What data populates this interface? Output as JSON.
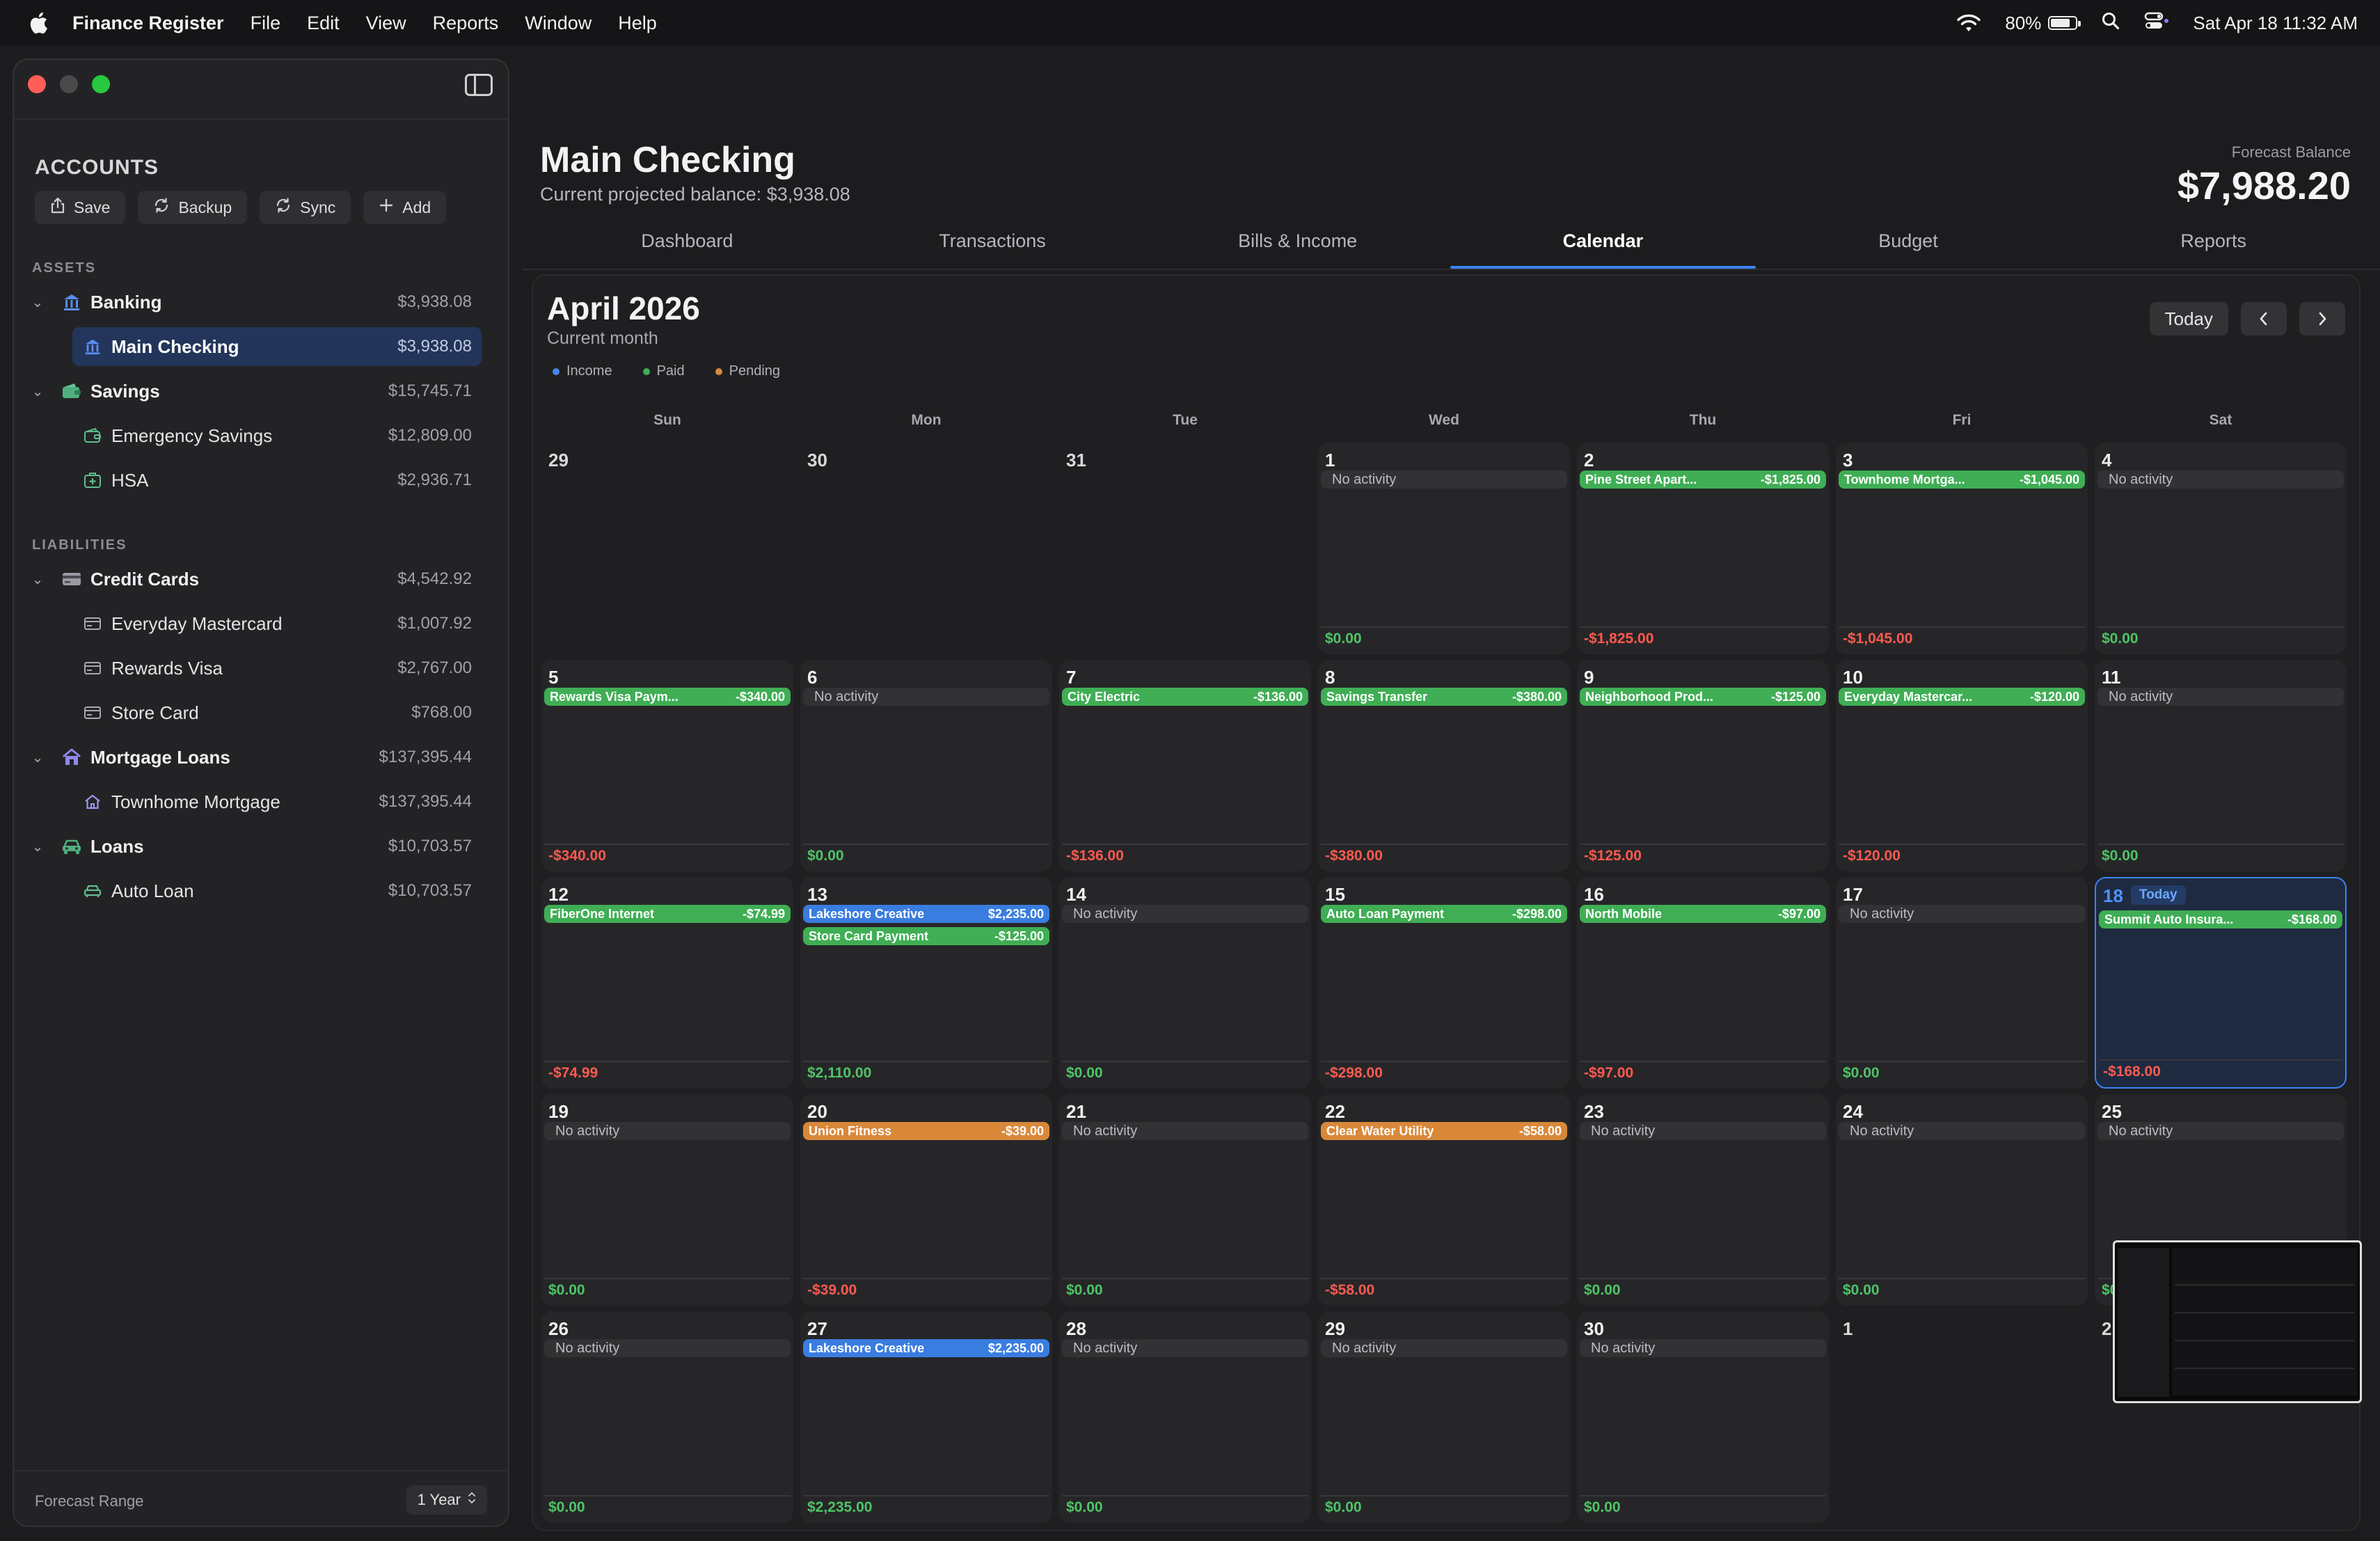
{
  "menubar": {
    "app_name": "Finance Register",
    "menus": [
      "File",
      "Edit",
      "View",
      "Reports",
      "Window",
      "Help"
    ],
    "battery": "80%",
    "battery_level": 0.8,
    "datetime": "Sat Apr 18  11:32 AM"
  },
  "sidebar": {
    "title": "ACCOUNTS",
    "toolbar": [
      {
        "label": "Save",
        "icon": "share-icon"
      },
      {
        "label": "Backup",
        "icon": "backup-icon"
      },
      {
        "label": "Sync",
        "icon": "sync-icon"
      },
      {
        "label": "Add",
        "icon": "plus-icon"
      }
    ],
    "assets_label": "ASSETS",
    "liabilities_label": "LIABILITIES",
    "groups": [
      {
        "name": "Banking",
        "amount": "$3,938.08",
        "icon": "bank-icon",
        "children": [
          {
            "name": "Main Checking",
            "amount": "$3,938.08",
            "icon": "bank-icon",
            "selected": true
          }
        ]
      },
      {
        "name": "Savings",
        "amount": "$15,745.71",
        "icon": "wallet-icon",
        "children": [
          {
            "name": "Emergency Savings",
            "amount": "$12,809.00",
            "icon": "wallet-icon"
          },
          {
            "name": "HSA",
            "amount": "$2,936.71",
            "icon": "medical-icon"
          }
        ]
      },
      {
        "name": "Credit Cards",
        "amount": "$4,542.92",
        "icon": "card-icon",
        "children": [
          {
            "name": "Everyday Mastercard",
            "amount": "$1,007.92",
            "icon": "card-icon"
          },
          {
            "name": "Rewards Visa",
            "amount": "$2,767.00",
            "icon": "card-icon"
          },
          {
            "name": "Store Card",
            "amount": "$768.00",
            "icon": "card-icon"
          }
        ]
      },
      {
        "name": "Mortgage Loans",
        "amount": "$137,395.44",
        "icon": "house-icon",
        "children": [
          {
            "name": "Townhome Mortgage",
            "amount": "$137,395.44",
            "icon": "house-icon"
          }
        ]
      },
      {
        "name": "Loans",
        "amount": "$10,703.57",
        "icon": "car-icon",
        "children": [
          {
            "name": "Auto Loan",
            "amount": "$10,703.57",
            "icon": "car-icon"
          }
        ]
      }
    ],
    "forecast_range_label": "Forecast Range",
    "forecast_range_value": "1 Year"
  },
  "header": {
    "title": "Main Checking",
    "subtitle": "Current projected balance: $3,938.08",
    "forecast_label": "Forecast Balance",
    "forecast_value": "$7,988.20"
  },
  "tabs": [
    {
      "label": "Dashboard",
      "active": false
    },
    {
      "label": "Transactions",
      "active": false
    },
    {
      "label": "Bills & Income",
      "active": false
    },
    {
      "label": "Calendar",
      "active": true
    },
    {
      "label": "Budget",
      "active": false
    },
    {
      "label": "Reports",
      "active": false
    }
  ],
  "calendar": {
    "title": "April 2026",
    "subtitle": "Current month",
    "legend": [
      {
        "label": "Income",
        "color": "#4a86e8"
      },
      {
        "label": "Paid",
        "color": "#3fae54"
      },
      {
        "label": "Pending",
        "color": "#d9883a"
      }
    ],
    "today_label": "Today",
    "today_badge": "Today",
    "weekdays": [
      "Sun",
      "Mon",
      "Tue",
      "Wed",
      "Thu",
      "Fri",
      "Sat"
    ],
    "no_activity": "No activity",
    "weeks": [
      [
        {
          "day": "29",
          "out": true
        },
        {
          "day": "30",
          "out": true
        },
        {
          "day": "31",
          "out": true
        },
        {
          "day": "1",
          "events": [],
          "total": "$0.00"
        },
        {
          "day": "2",
          "events": [
            {
              "name": "Pine Street Apart...",
              "amount": "-$1,825.00",
              "type": "paid"
            }
          ],
          "total": "-$1,825.00"
        },
        {
          "day": "3",
          "events": [
            {
              "name": "Townhome Mortga...",
              "amount": "-$1,045.00",
              "type": "paid"
            }
          ],
          "total": "-$1,045.00"
        },
        {
          "day": "4",
          "events": [],
          "total": "$0.00"
        }
      ],
      [
        {
          "day": "5",
          "events": [
            {
              "name": "Rewards Visa Paym...",
              "amount": "-$340.00",
              "type": "paid"
            }
          ],
          "total": "-$340.00"
        },
        {
          "day": "6",
          "events": [],
          "total": "$0.00"
        },
        {
          "day": "7",
          "events": [
            {
              "name": "City Electric",
              "amount": "-$136.00",
              "type": "paid"
            }
          ],
          "total": "-$136.00"
        },
        {
          "day": "8",
          "events": [
            {
              "name": "Savings Transfer",
              "amount": "-$380.00",
              "type": "paid"
            }
          ],
          "total": "-$380.00"
        },
        {
          "day": "9",
          "events": [
            {
              "name": "Neighborhood Prod...",
              "amount": "-$125.00",
              "type": "paid"
            }
          ],
          "total": "-$125.00"
        },
        {
          "day": "10",
          "events": [
            {
              "name": "Everyday Mastercar...",
              "amount": "-$120.00",
              "type": "paid"
            }
          ],
          "total": "-$120.00"
        },
        {
          "day": "11",
          "events": [],
          "total": "$0.00"
        }
      ],
      [
        {
          "day": "12",
          "events": [
            {
              "name": "FiberOne Internet",
              "amount": "-$74.99",
              "type": "paid"
            }
          ],
          "total": "-$74.99"
        },
        {
          "day": "13",
          "events": [
            {
              "name": "Lakeshore Creative",
              "amount": "$2,235.00",
              "type": "income"
            },
            {
              "name": "Store Card Payment",
              "amount": "-$125.00",
              "type": "paid"
            }
          ],
          "total": "$2,110.00"
        },
        {
          "day": "14",
          "events": [],
          "total": "$0.00"
        },
        {
          "day": "15",
          "events": [
            {
              "name": "Auto Loan Payment",
              "amount": "-$298.00",
              "type": "paid"
            }
          ],
          "total": "-$298.00"
        },
        {
          "day": "16",
          "events": [
            {
              "name": "North Mobile",
              "amount": "-$97.00",
              "type": "paid"
            }
          ],
          "total": "-$97.00"
        },
        {
          "day": "17",
          "events": [],
          "total": "$0.00"
        },
        {
          "day": "18",
          "today": true,
          "events": [
            {
              "name": "Summit Auto Insura...",
              "amount": "-$168.00",
              "type": "paid"
            }
          ],
          "total": "-$168.00"
        }
      ],
      [
        {
          "day": "19",
          "events": [],
          "total": "$0.00"
        },
        {
          "day": "20",
          "events": [
            {
              "name": "Union Fitness",
              "amount": "-$39.00",
              "type": "pending"
            }
          ],
          "total": "-$39.00"
        },
        {
          "day": "21",
          "events": [],
          "total": "$0.00"
        },
        {
          "day": "22",
          "events": [
            {
              "name": "Clear Water Utility",
              "amount": "-$58.00",
              "type": "pending"
            }
          ],
          "total": "-$58.00"
        },
        {
          "day": "23",
          "events": [],
          "total": "$0.00"
        },
        {
          "day": "24",
          "events": [],
          "total": "$0.00"
        },
        {
          "day": "25",
          "events": [],
          "total": "$0"
        }
      ],
      [
        {
          "day": "26",
          "events": [],
          "total": "$0.00"
        },
        {
          "day": "27",
          "events": [
            {
              "name": "Lakeshore Creative",
              "amount": "$2,235.00",
              "type": "income"
            }
          ],
          "total": "$2,235.00"
        },
        {
          "day": "28",
          "events": [],
          "total": "$0.00"
        },
        {
          "day": "29",
          "events": [],
          "total": "$0.00"
        },
        {
          "day": "30",
          "events": [],
          "total": "$0.00"
        },
        {
          "day": "1",
          "out": true
        },
        {
          "day": "2",
          "out": true
        }
      ]
    ]
  }
}
